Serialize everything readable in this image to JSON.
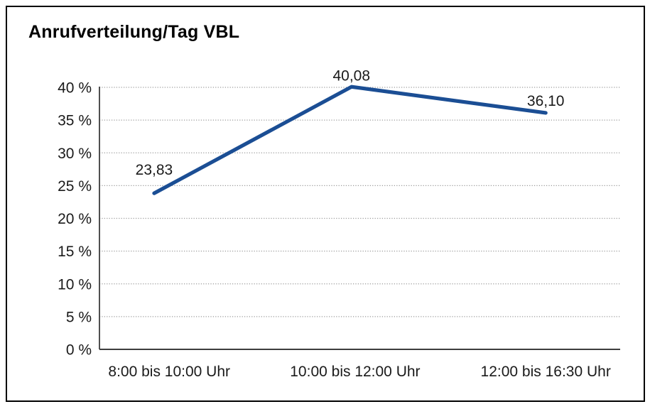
{
  "chart_data": {
    "type": "line",
    "title": "Anrufverteilung/Tag VBL",
    "categories": [
      "8:00 bis 10:00 Uhr",
      "10:00 bis 12:00 Uhr",
      "12:00 bis 16:30 Uhr"
    ],
    "values": [
      23.83,
      40.08,
      36.1
    ],
    "point_labels": [
      "23,83",
      "40,08",
      "36,10"
    ],
    "xlabel": "",
    "ylabel": "",
    "ylim": [
      0,
      40
    ],
    "ytick_step": 5,
    "ytick_labels": [
      "0 %",
      "5 %",
      "10 %",
      "15 %",
      "20 %",
      "25 %",
      "30 %",
      "35 %",
      "40 %"
    ],
    "grid": "horizontal-dotted",
    "legend": "none",
    "colors": {
      "line": "#1B4E94",
      "text": "#1a1a1a",
      "grid": "#9a9a9a",
      "axis": "#3d3d3d",
      "frame": "#000000",
      "background": "#ffffff"
    }
  }
}
